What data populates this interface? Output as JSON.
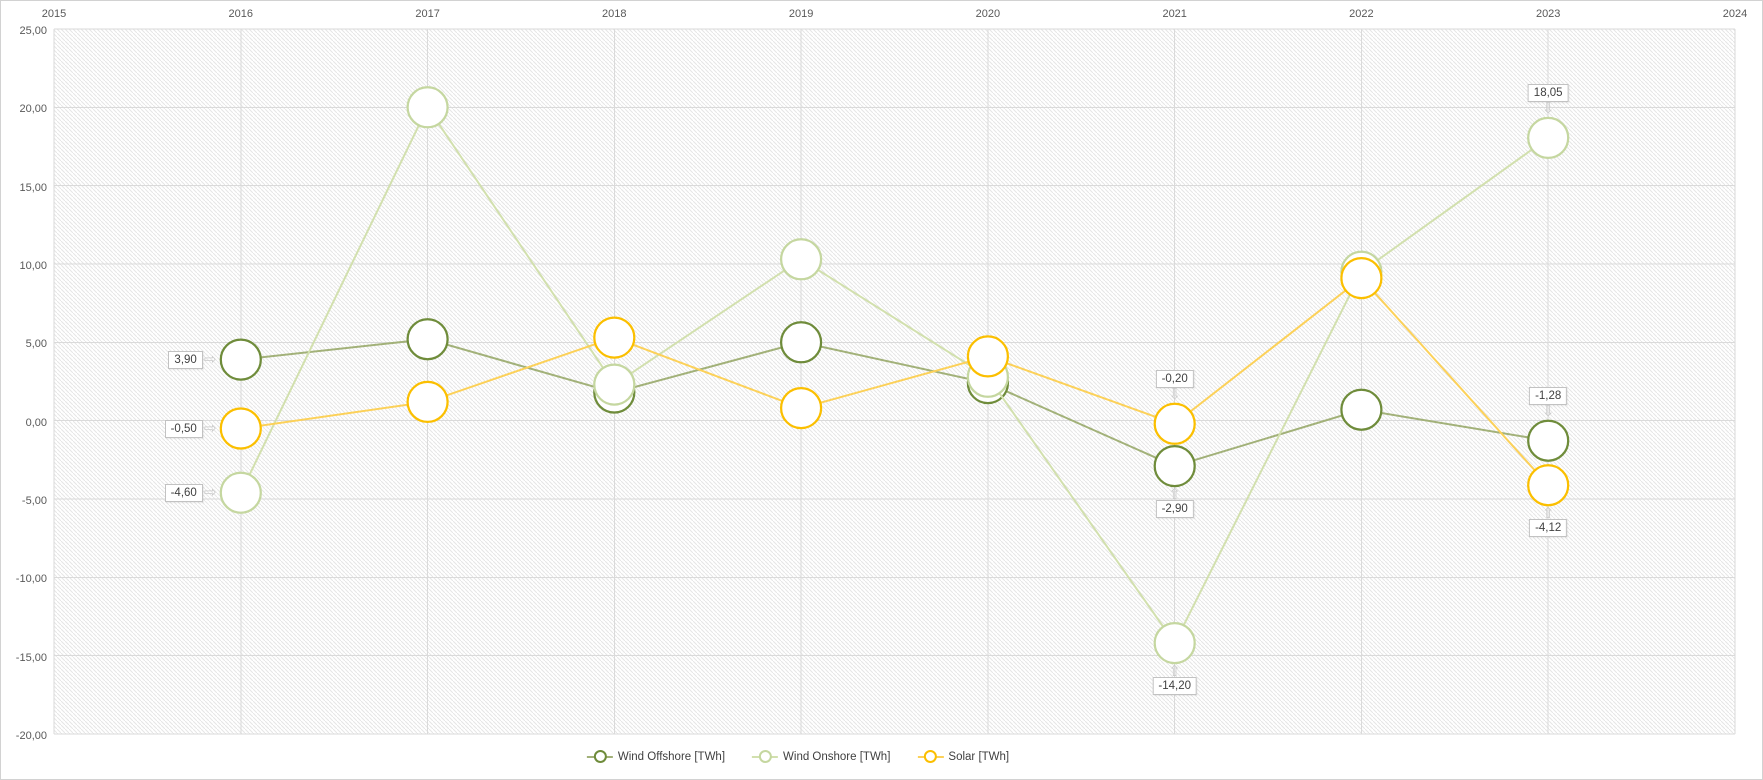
{
  "chart_data": {
    "type": "line",
    "title": "",
    "x_axis": {
      "position": "top",
      "min": 2015,
      "max": 2024,
      "ticks": [
        "2015",
        "2016",
        "2017",
        "2018",
        "2019",
        "2020",
        "2021",
        "2022",
        "2023",
        "2024"
      ]
    },
    "y_axis": {
      "min": -20,
      "max": 25,
      "step": 5,
      "ticks": [
        "25,00",
        "20,00",
        "15,00",
        "10,00",
        "5,00",
        "0,00",
        "-5,00",
        "-10,00",
        "-15,00",
        "-20,00"
      ]
    },
    "grid": true,
    "plot_background": "diagonal-hatch",
    "categories": [
      2016,
      2017,
      2018,
      2019,
      2020,
      2021,
      2022,
      2023
    ],
    "series": [
      {
        "name": "Wind Offshore [TWh]",
        "marker_color": "#6f8c3b",
        "line_color": "#a2b179",
        "values": [
          3.9,
          5.2,
          1.8,
          5.0,
          2.4,
          -2.9,
          0.7,
          -1.28
        ]
      },
      {
        "name": "Wind Onshore [TWh]",
        "marker_color": "#c5d7a0",
        "line_color": "#d2e0ae",
        "values": [
          -4.6,
          20.0,
          2.3,
          10.3,
          2.8,
          -14.2,
          9.5,
          18.05
        ]
      },
      {
        "name": "Solar [TWh]",
        "marker_color": "#fbbf00",
        "line_color": "#fcd159",
        "values": [
          -0.5,
          1.2,
          5.3,
          0.8,
          4.1,
          -0.2,
          9.1,
          -4.12
        ]
      }
    ],
    "data_labels": [
      {
        "series_index": 0,
        "year": 2016,
        "text": "3,90",
        "side": "left"
      },
      {
        "series_index": 2,
        "year": 2016,
        "text": "-0,50",
        "side": "left"
      },
      {
        "series_index": 1,
        "year": 2016,
        "text": "-4,60",
        "side": "left"
      },
      {
        "series_index": 2,
        "year": 2021,
        "text": "-0,20",
        "side": "above"
      },
      {
        "series_index": 0,
        "year": 2021,
        "text": "-2,90",
        "side": "below"
      },
      {
        "series_index": 1,
        "year": 2021,
        "text": "-14,20",
        "side": "below"
      },
      {
        "series_index": 1,
        "year": 2023,
        "text": "18,05",
        "side": "above"
      },
      {
        "series_index": 0,
        "year": 2023,
        "text": "-1,28",
        "side": "above"
      },
      {
        "series_index": 2,
        "year": 2023,
        "text": "-4,12",
        "side": "below"
      }
    ],
    "legend": {
      "position": "bottom"
    }
  },
  "style": {
    "gridline_color": "#dadada",
    "hatch_color": "#e5e5e5",
    "axis_text_color": "#595959",
    "label_text_color": "#404040",
    "callout_border_color": "#c2c2c2",
    "callout_arrow_color": "#c9c9c9",
    "marker_fill": "#ffffff"
  }
}
